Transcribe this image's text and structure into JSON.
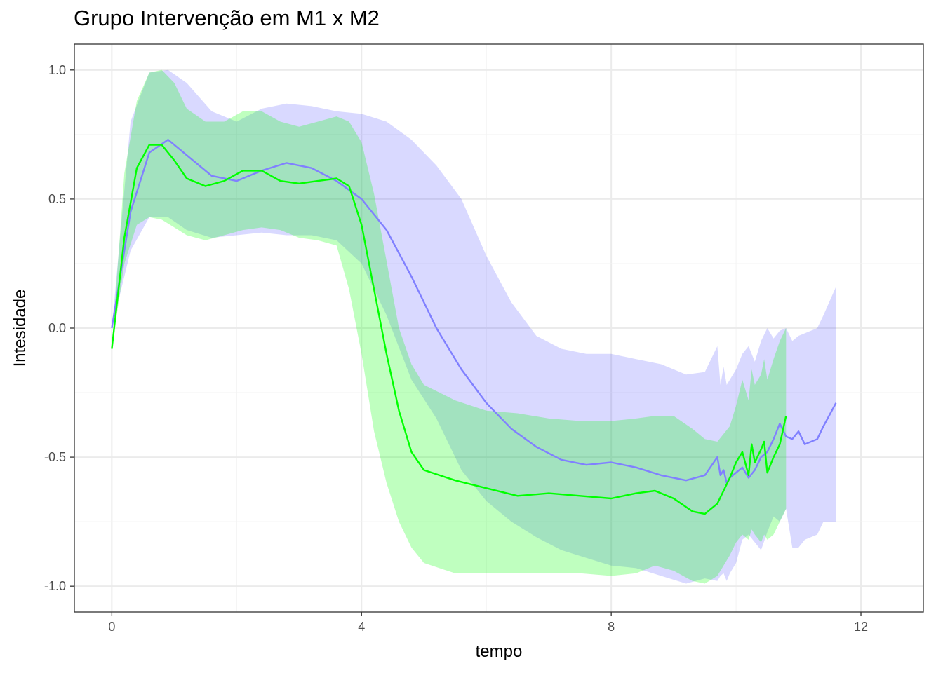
{
  "chart_data": {
    "type": "line",
    "title": "Grupo Intervenção em M1 x M2",
    "xlabel": "tempo",
    "ylabel": "Intesidade",
    "xlim": [
      -0.6,
      13.0
    ],
    "ylim": [
      -1.1,
      1.1
    ],
    "x_ticks": [
      0,
      4,
      8,
      12
    ],
    "x_tick_labels": [
      "0",
      "4",
      "8",
      "12"
    ],
    "y_ticks": [
      -1.0,
      -0.5,
      0.0,
      0.5,
      1.0
    ],
    "y_tick_labels": [
      "-1.0",
      "-0.5",
      "0.0",
      "0.5",
      "1.0"
    ],
    "grid": true,
    "legend": "none",
    "series": [
      {
        "color": "#8080ff",
        "band_color": "#0000ff",
        "band_opacity": 0.15,
        "x": [
          0,
          0.3,
          0.6,
          0.9,
          1.2,
          1.6,
          2.0,
          2.4,
          2.8,
          3.2,
          3.6,
          4.0,
          4.4,
          4.8,
          5.2,
          5.6,
          6.0,
          6.4,
          6.8,
          7.2,
          7.6,
          8.0,
          8.4,
          8.8,
          9.2,
          9.5,
          9.7,
          9.75,
          9.8,
          9.85,
          9.9,
          10.0,
          10.1,
          10.2,
          10.3,
          10.4,
          10.5,
          10.6,
          10.7,
          10.8,
          10.9,
          11.0,
          11.1,
          11.3,
          11.4,
          11.6
        ],
        "y": [
          0.0,
          0.45,
          0.68,
          0.73,
          0.67,
          0.59,
          0.57,
          0.61,
          0.64,
          0.62,
          0.57,
          0.5,
          0.38,
          0.2,
          0.0,
          -0.16,
          -0.29,
          -0.39,
          -0.46,
          -0.51,
          -0.53,
          -0.52,
          -0.54,
          -0.57,
          -0.59,
          -0.57,
          -0.5,
          -0.57,
          -0.55,
          -0.6,
          -0.58,
          -0.56,
          -0.54,
          -0.58,
          -0.55,
          -0.5,
          -0.48,
          -0.43,
          -0.37,
          -0.42,
          -0.43,
          -0.4,
          -0.45,
          -0.43,
          -0.38,
          -0.29
        ],
        "lower": [
          0.0,
          0.3,
          0.43,
          0.43,
          0.38,
          0.35,
          0.36,
          0.37,
          0.36,
          0.36,
          0.34,
          0.25,
          0.05,
          -0.2,
          -0.35,
          -0.55,
          -0.67,
          -0.75,
          -0.81,
          -0.86,
          -0.89,
          -0.92,
          -0.93,
          -0.96,
          -0.99,
          -0.97,
          -0.98,
          -0.96,
          -0.95,
          -0.98,
          -0.95,
          -0.91,
          -0.82,
          -0.8,
          -0.83,
          -0.86,
          -0.79,
          -0.73,
          -0.75,
          -0.7,
          -0.85,
          -0.85,
          -0.82,
          -0.8,
          -0.75,
          -0.75
        ],
        "upper": [
          0.0,
          0.8,
          0.99,
          1.0,
          0.95,
          0.84,
          0.8,
          0.85,
          0.87,
          0.86,
          0.84,
          0.83,
          0.8,
          0.73,
          0.63,
          0.5,
          0.28,
          0.1,
          -0.03,
          -0.08,
          -0.1,
          -0.1,
          -0.12,
          -0.14,
          -0.18,
          -0.17,
          -0.07,
          -0.22,
          -0.15,
          -0.22,
          -0.2,
          -0.16,
          -0.1,
          -0.07,
          -0.13,
          -0.05,
          0.0,
          -0.04,
          -0.01,
          0.0,
          -0.05,
          -0.03,
          -0.02,
          0.0,
          0.05,
          0.16
        ]
      },
      {
        "color": "#00ff00",
        "band_color": "#00ff00",
        "band_opacity": 0.25,
        "x": [
          0,
          0.2,
          0.4,
          0.6,
          0.8,
          1.0,
          1.2,
          1.5,
          1.8,
          2.1,
          2.4,
          2.7,
          3.0,
          3.3,
          3.6,
          3.8,
          4.0,
          4.2,
          4.4,
          4.6,
          4.8,
          5.0,
          5.5,
          6.0,
          6.5,
          7.0,
          7.5,
          8.0,
          8.4,
          8.7,
          9.0,
          9.3,
          9.5,
          9.7,
          9.9,
          10.0,
          10.1,
          10.2,
          10.25,
          10.3,
          10.4,
          10.45,
          10.5,
          10.6,
          10.7,
          10.8
        ],
        "y": [
          -0.08,
          0.35,
          0.62,
          0.71,
          0.71,
          0.65,
          0.58,
          0.55,
          0.57,
          0.61,
          0.61,
          0.57,
          0.56,
          0.57,
          0.58,
          0.55,
          0.4,
          0.15,
          -0.1,
          -0.32,
          -0.48,
          -0.55,
          -0.59,
          -0.62,
          -0.65,
          -0.64,
          -0.65,
          -0.66,
          -0.64,
          -0.63,
          -0.66,
          -0.71,
          -0.72,
          -0.68,
          -0.58,
          -0.52,
          -0.48,
          -0.57,
          -0.45,
          -0.52,
          -0.47,
          -0.44,
          -0.56,
          -0.5,
          -0.45,
          -0.34
        ],
        "lower": [
          -0.08,
          0.25,
          0.4,
          0.43,
          0.42,
          0.39,
          0.36,
          0.34,
          0.36,
          0.38,
          0.39,
          0.38,
          0.35,
          0.34,
          0.32,
          0.15,
          -0.1,
          -0.4,
          -0.6,
          -0.75,
          -0.85,
          -0.91,
          -0.95,
          -0.95,
          -0.95,
          -0.95,
          -0.95,
          -0.96,
          -0.95,
          -0.92,
          -0.94,
          -0.98,
          -0.99,
          -0.96,
          -0.88,
          -0.83,
          -0.8,
          -0.82,
          -0.78,
          -0.8,
          -0.83,
          -0.8,
          -0.82,
          -0.8,
          -0.75,
          -0.7
        ],
        "upper": [
          -0.08,
          0.6,
          0.88,
          0.99,
          1.0,
          0.95,
          0.85,
          0.8,
          0.8,
          0.84,
          0.84,
          0.8,
          0.78,
          0.8,
          0.82,
          0.8,
          0.72,
          0.52,
          0.26,
          0.0,
          -0.14,
          -0.22,
          -0.28,
          -0.32,
          -0.33,
          -0.35,
          -0.36,
          -0.36,
          -0.35,
          -0.34,
          -0.34,
          -0.39,
          -0.43,
          -0.44,
          -0.38,
          -0.3,
          -0.2,
          -0.28,
          -0.16,
          -0.22,
          -0.18,
          -0.12,
          -0.2,
          -0.12,
          -0.05,
          0.0
        ]
      }
    ]
  }
}
